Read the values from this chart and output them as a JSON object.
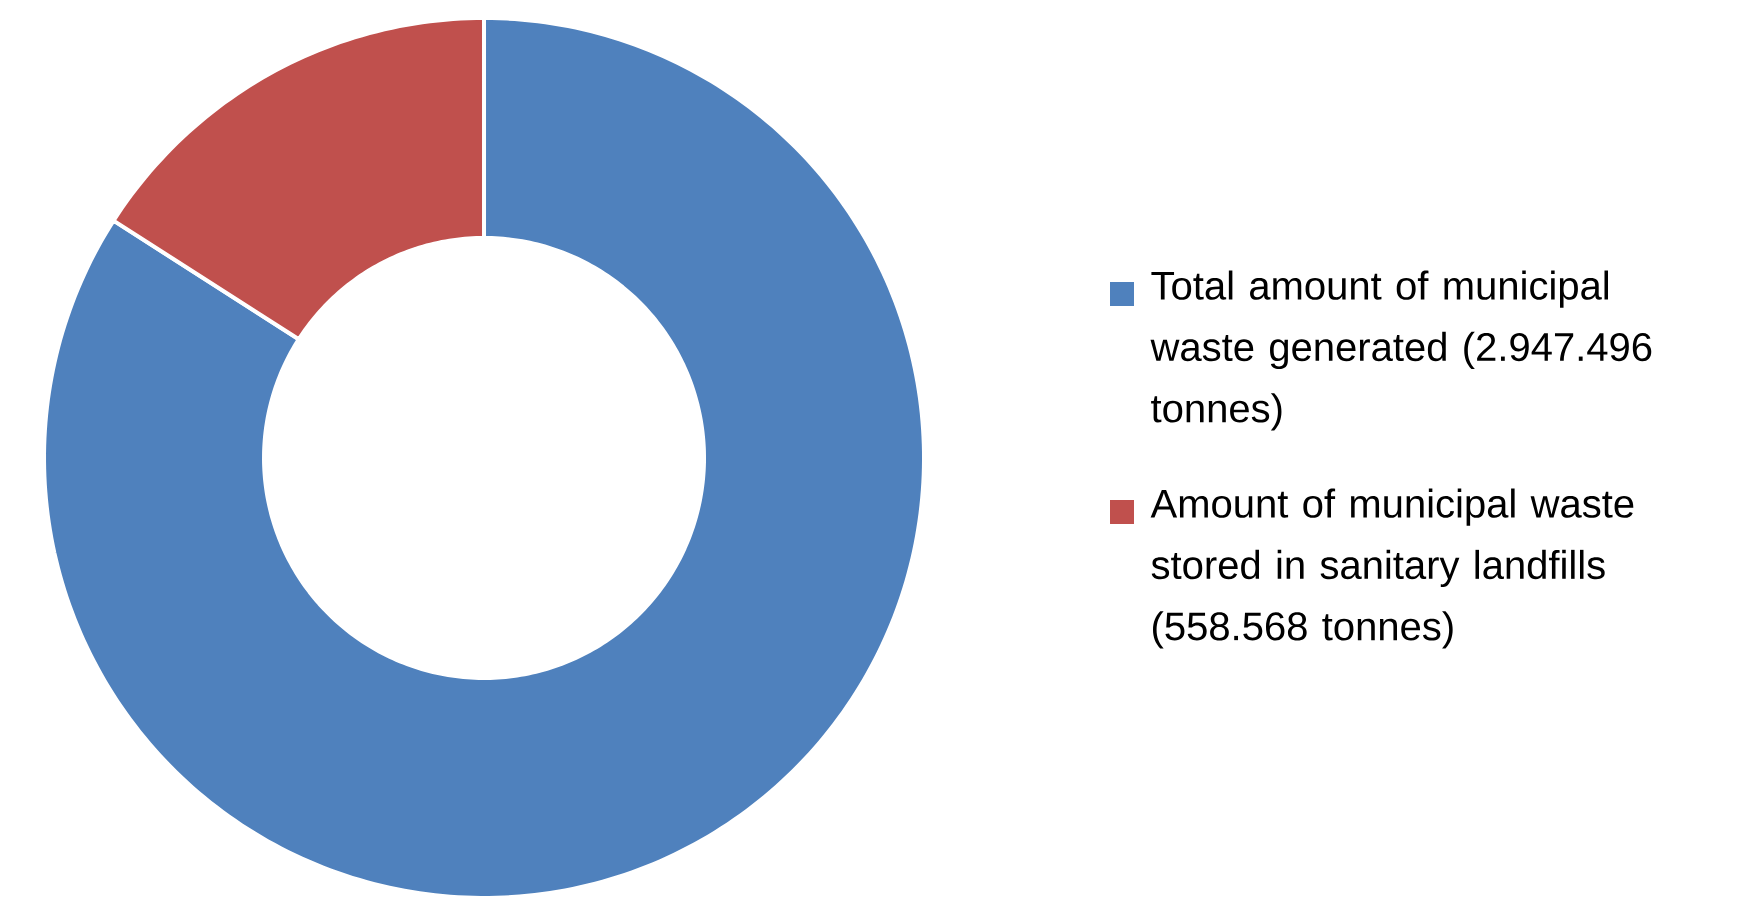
{
  "chart_data": {
    "type": "donut",
    "categories": [
      "Total amount of municipal waste generated (2.947.496 tonnes)",
      "Amount of municipal waste stored in sanitary landfills (558.568 tonnes)"
    ],
    "values": [
      2947496,
      558568
    ],
    "colors": [
      "#4f81bd",
      "#c0504d"
    ],
    "legend": "right"
  }
}
